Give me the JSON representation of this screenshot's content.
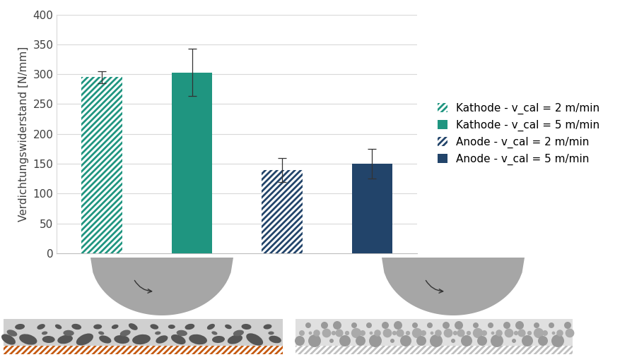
{
  "chart_data": {
    "type": "bar",
    "y_label": "Verdichtungswiderstand [N/mm]",
    "categories": [
      null,
      null,
      null,
      null
    ],
    "series": [
      {
        "name": "Kathode - v_cal = 2 m/min",
        "color": "#1f9580",
        "line_style": "hatched",
        "values": [
          295,
          null,
          null,
          null
        ],
        "errors": [
          10,
          null,
          null,
          null
        ]
      },
      {
        "name": "Kathode - v_cal = 5 m/min",
        "color": "#1f9580",
        "line_style": "solid",
        "values": [
          null,
          303,
          null,
          null
        ],
        "errors": [
          null,
          40,
          null,
          null
        ]
      },
      {
        "name": "Anode - v_cal = 2 m/min",
        "color": "#22446a",
        "line_style": "hatched",
        "values": [
          null,
          null,
          140,
          null
        ],
        "errors": [
          null,
          null,
          20,
          null
        ]
      },
      {
        "name": "Anode - v_cal = 5 m/min",
        "color": "#22446a",
        "line_style": "solid",
        "values": [
          null,
          null,
          null,
          150
        ],
        "errors": [
          null,
          null,
          null,
          25
        ]
      }
    ],
    "ylim": [
      0,
      400
    ],
    "yticks": [
      0,
      50,
      100,
      150,
      200,
      250,
      300,
      350,
      400
    ],
    "grid": true,
    "legend": "center left",
    "tick_labels": "y"
  }
}
